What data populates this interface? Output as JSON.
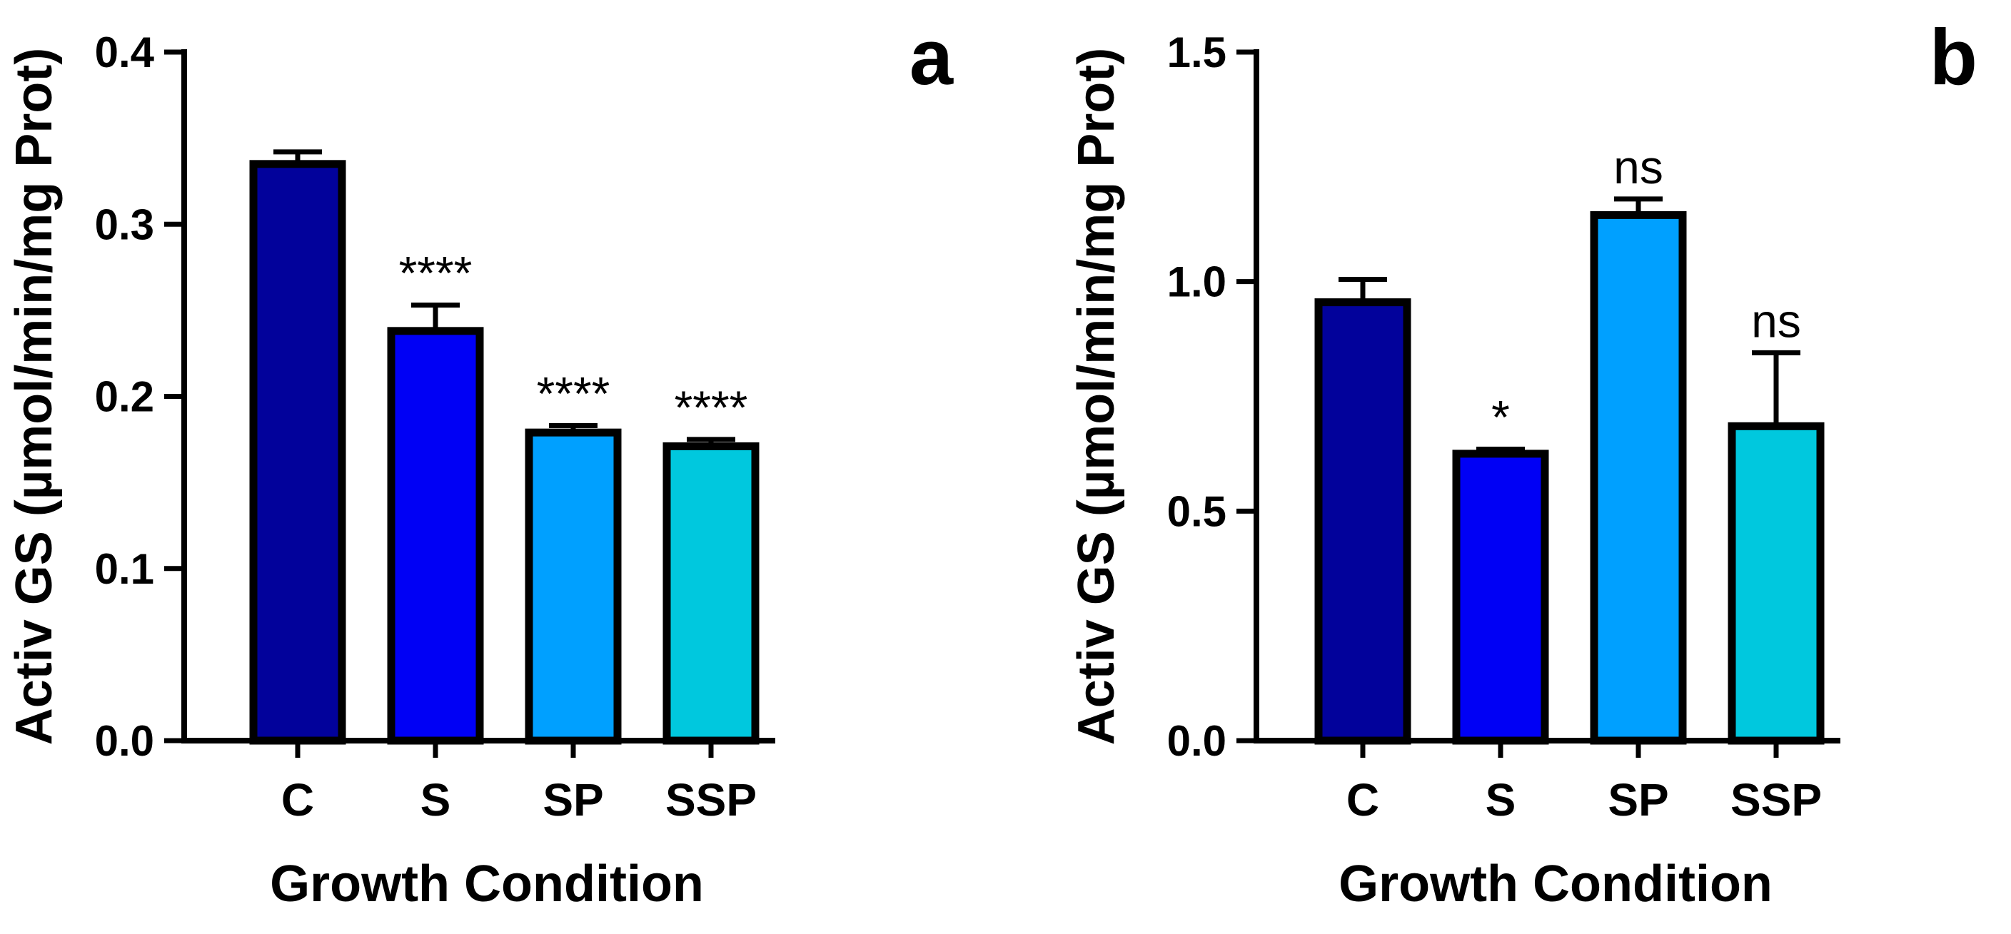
{
  "chart_data": [
    {
      "type": "bar",
      "panel_label": "a",
      "categories": [
        "C",
        "S",
        "SP",
        "SSP"
      ],
      "values": [
        0.335,
        0.238,
        0.179,
        0.171
      ],
      "errors": [
        0.007,
        0.015,
        0.004,
        0.004
      ],
      "significance": [
        "",
        "****",
        "****",
        "****"
      ],
      "colors": [
        "#02029B",
        "#0000F5",
        "#00A0FF",
        "#00C8DE"
      ],
      "ylabel": "Activ GS (µmol/min/mg Prot)",
      "xlabel": "Growth Condition",
      "ylim": [
        0,
        0.4
      ],
      "yticks": [
        0.0,
        0.1,
        0.2,
        0.3,
        0.4
      ],
      "ytick_labels": [
        "0.0",
        "0.1",
        "0.2",
        "0.3",
        "0.4"
      ]
    },
    {
      "type": "bar",
      "panel_label": "b",
      "categories": [
        "C",
        "S",
        "SP",
        "SSP"
      ],
      "values": [
        0.955,
        0.625,
        1.145,
        0.685
      ],
      "errors": [
        0.05,
        0.01,
        0.035,
        0.16
      ],
      "significance": [
        "",
        "*",
        "ns",
        "ns"
      ],
      "colors": [
        "#02029B",
        "#0000F5",
        "#00A0FF",
        "#00C8DE"
      ],
      "ylabel": "Activ GS (µmol/min/mg Prot)",
      "xlabel": "Growth Condition",
      "ylim": [
        0,
        1.5
      ],
      "yticks": [
        0.0,
        0.5,
        1.0,
        1.5
      ],
      "ytick_labels": [
        "0.0",
        "0.5",
        "1.0",
        "1.5"
      ]
    }
  ]
}
